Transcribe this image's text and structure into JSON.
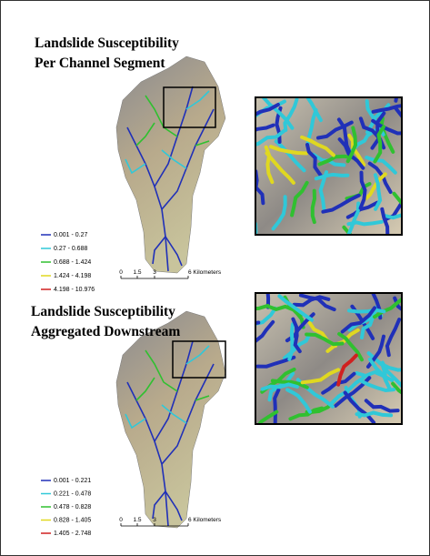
{
  "panels": [
    {
      "title": [
        "Landslide Susceptibility",
        "Per Channel Segment"
      ],
      "legend": [
        {
          "label": "0.001 - 0.27",
          "color": "#2030b8"
        },
        {
          "label": "0.27 - 0.688",
          "color": "#30c8d8"
        },
        {
          "label": "0.688 - 1.424",
          "color": "#30c030"
        },
        {
          "label": "1.424 - 4.198",
          "color": "#e0d820"
        },
        {
          "label": "4.198 - 10.976",
          "color": "#d02020"
        }
      ],
      "scale": [
        "0",
        "1.5",
        "3",
        "6 Kilometers"
      ]
    },
    {
      "title": [
        "Landslide Susceptibility",
        "Aggregated Downstream"
      ],
      "legend": [
        {
          "label": "0.001 - 0.221",
          "color": "#2030b8"
        },
        {
          "label": "0.221 - 0.478",
          "color": "#30c8d8"
        },
        {
          "label": "0.478 - 0.828",
          "color": "#30c030"
        },
        {
          "label": "0.828 - 1.405",
          "color": "#e0d820"
        },
        {
          "label": "1.405 - 2.748",
          "color": "#d02020"
        }
      ],
      "scale": [
        "0",
        "1.5",
        "3",
        "6 Kilometers"
      ]
    }
  ]
}
